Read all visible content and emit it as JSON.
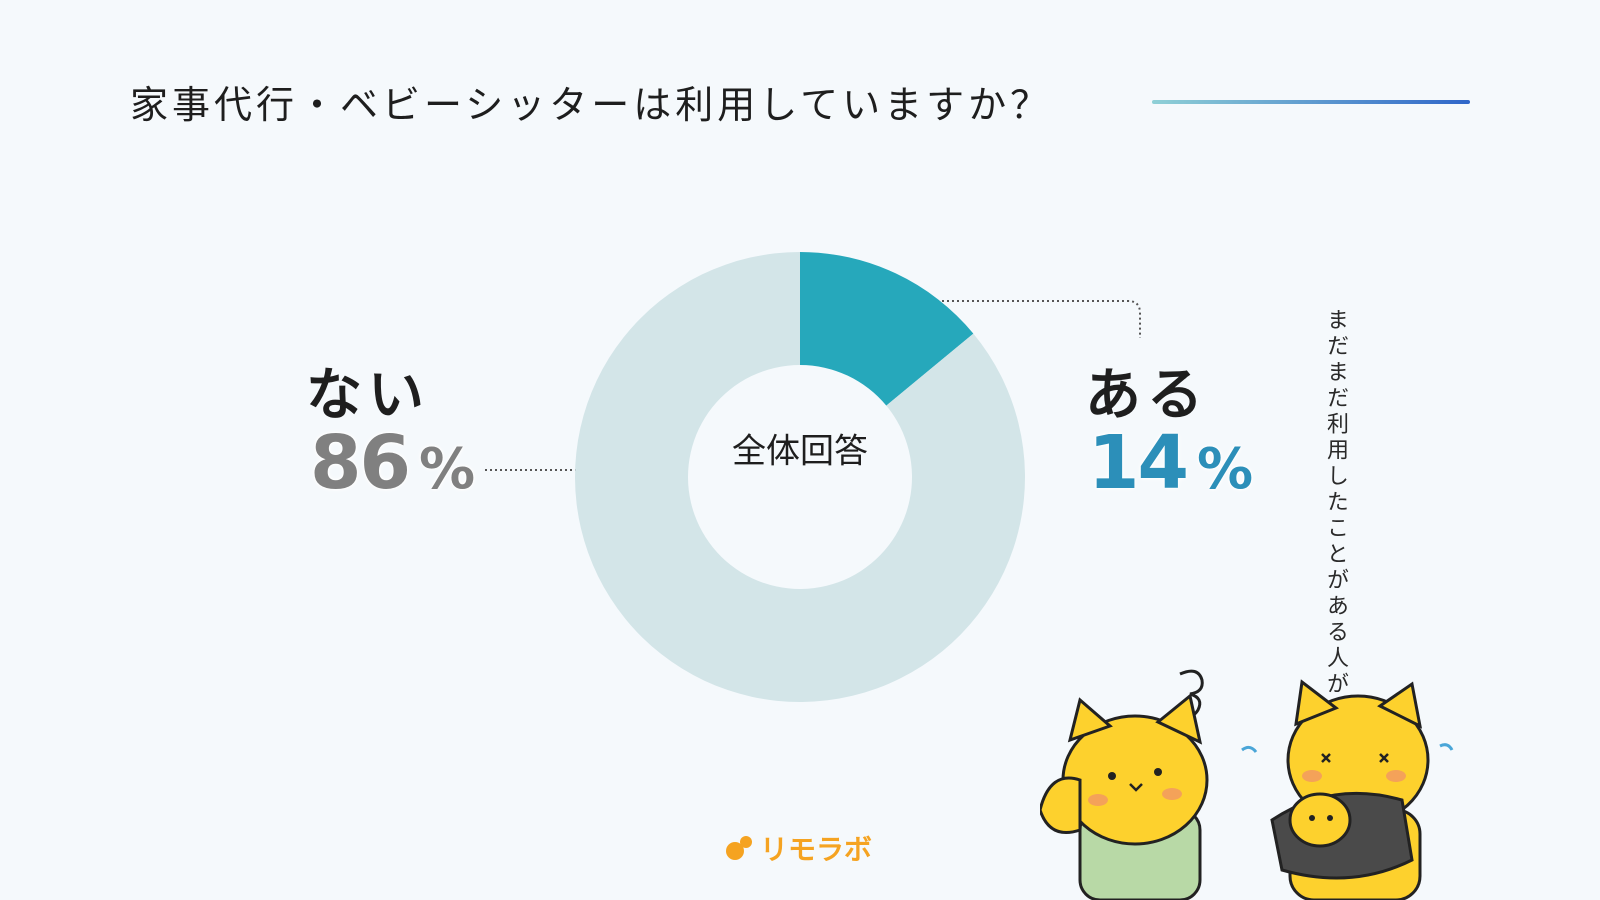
{
  "title": "家事代行・ベビーシッターは利用していますか？",
  "chart_data": {
    "type": "pie",
    "center_label": "全体回答",
    "slices": [
      {
        "label": "ある",
        "value": 14,
        "color": "#26a8bb"
      },
      {
        "label": "ない",
        "value": 86,
        "color": "#d3e5e8"
      }
    ],
    "percent_sign": "%"
  },
  "labels": {
    "no_label": "ない",
    "no_value": "86",
    "yes_label": "ある",
    "yes_value": "14",
    "percent_sign": "%"
  },
  "note": "まだまだ利用したことがある人がすくないニャ",
  "brand": "リモラボ",
  "colors": {
    "background": "#f5f9fc",
    "yes_slice": "#26a8bb",
    "no_slice": "#d3e5e8",
    "yes_text": "#2c8fb9",
    "no_text": "#808080",
    "brand": "#f5a321"
  },
  "icons": [
    "cat-thinking-icon",
    "cat-parent-with-kitten-icon",
    "brand-logo-icon"
  ]
}
